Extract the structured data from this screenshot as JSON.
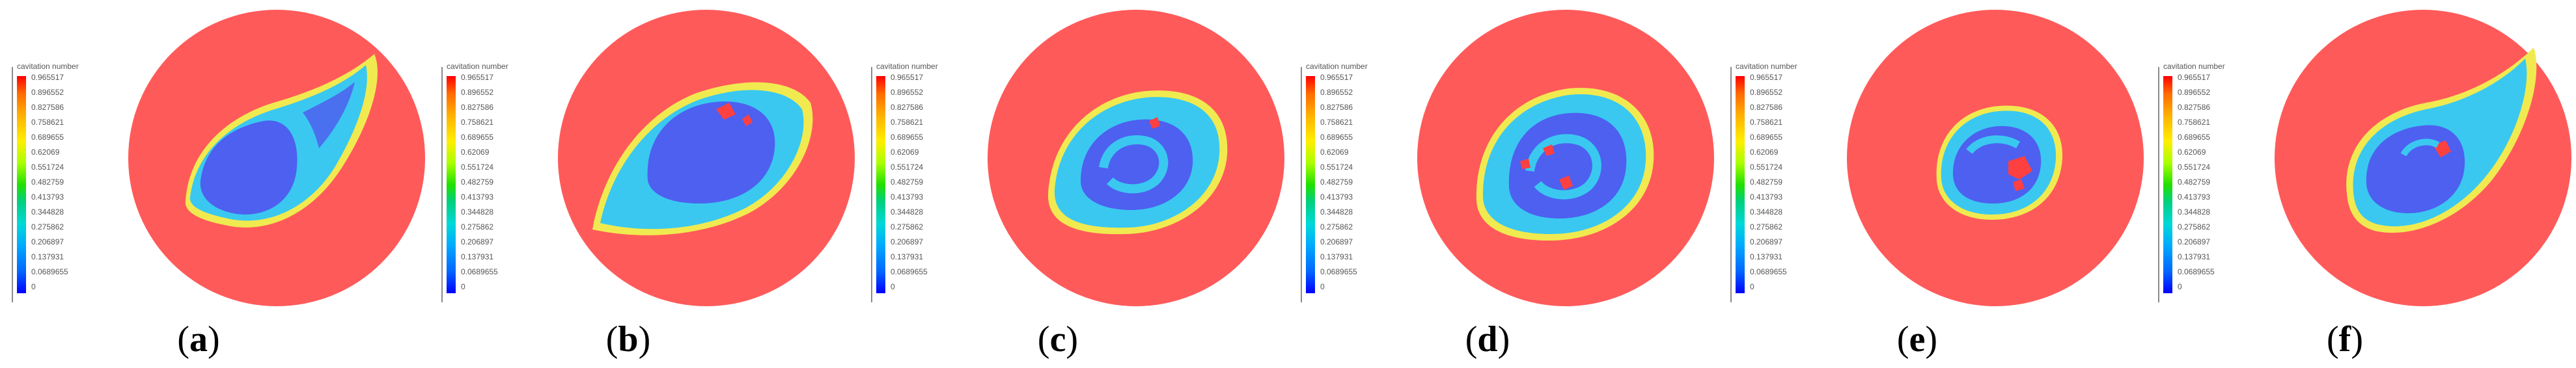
{
  "legend": {
    "title": "cavitation number",
    "ticks": [
      "0.965517",
      "0.896552",
      "0.827586",
      "0.758621",
      "0.689655",
      "0.62069",
      "0.551724",
      "0.482759",
      "0.413793",
      "0.344828",
      "0.275862",
      "0.206897",
      "0.137931",
      "0.0689655",
      "0"
    ]
  },
  "colors": {
    "background_region": "#ff5a5a",
    "low_region": "#4d60f0",
    "mid_region": "#3ac8f0"
  },
  "panels": [
    {
      "label": "a",
      "icon": "cavitation-contour-a"
    },
    {
      "label": "b",
      "icon": "cavitation-contour-b"
    },
    {
      "label": "c",
      "icon": "cavitation-contour-c"
    },
    {
      "label": "d",
      "icon": "cavitation-contour-d"
    },
    {
      "label": "e",
      "icon": "cavitation-contour-e"
    },
    {
      "label": "f",
      "icon": "cavitation-contour-f"
    }
  ]
}
